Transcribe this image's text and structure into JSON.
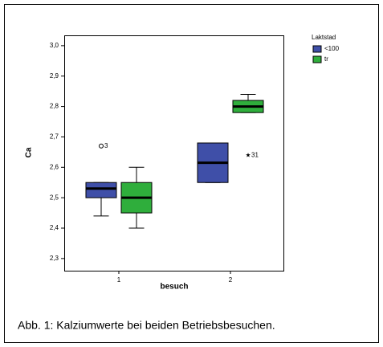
{
  "chart_data": {
    "type": "box",
    "categories": [
      "1",
      "2"
    ],
    "xlabel": "besuch",
    "ylabel": "Ca",
    "ylim": [
      2.26,
      3.034
    ],
    "yticks": [
      {
        "value": 2.3,
        "label": "2,3"
      },
      {
        "value": 2.4,
        "label": "2,4"
      },
      {
        "value": 2.5,
        "label": "2,5"
      },
      {
        "value": 2.6,
        "label": "2,6"
      },
      {
        "value": 2.7,
        "label": "2,7"
      },
      {
        "value": 2.8,
        "label": "2,8"
      },
      {
        "value": 2.9,
        "label": "2,9"
      },
      {
        "value": 3.0,
        "label": "3,0"
      }
    ],
    "legend_title": "Laktstad",
    "series": [
      {
        "name": "<100",
        "color": "#3f4fa8",
        "boxes": [
          {
            "min": 2.44,
            "q1": 2.5,
            "median": 2.53,
            "q3": 2.55,
            "max": 2.55
          },
          {
            "min": 2.55,
            "q1": 2.55,
            "median": 2.615,
            "q3": 2.68,
            "max": 2.68
          }
        ],
        "outliers": [
          [
            {
              "value": 2.67,
              "label": "3"
            }
          ],
          []
        ],
        "extremes": [
          [],
          []
        ]
      },
      {
        "name": "tr",
        "color": "#2fae3c",
        "boxes": [
          {
            "min": 2.4,
            "q1": 2.45,
            "median": 2.5,
            "q3": 2.55,
            "max": 2.6
          },
          {
            "min": 2.78,
            "q1": 2.78,
            "median": 2.8,
            "q3": 2.82,
            "max": 2.84
          }
        ],
        "outliers": [
          [],
          []
        ],
        "extremes": [
          [],
          [
            {
              "value": 2.64,
              "label": "31"
            }
          ]
        ]
      }
    ]
  },
  "caption": "Abb. 1: Kalziumwerte bei beiden Betriebsbesuchen."
}
